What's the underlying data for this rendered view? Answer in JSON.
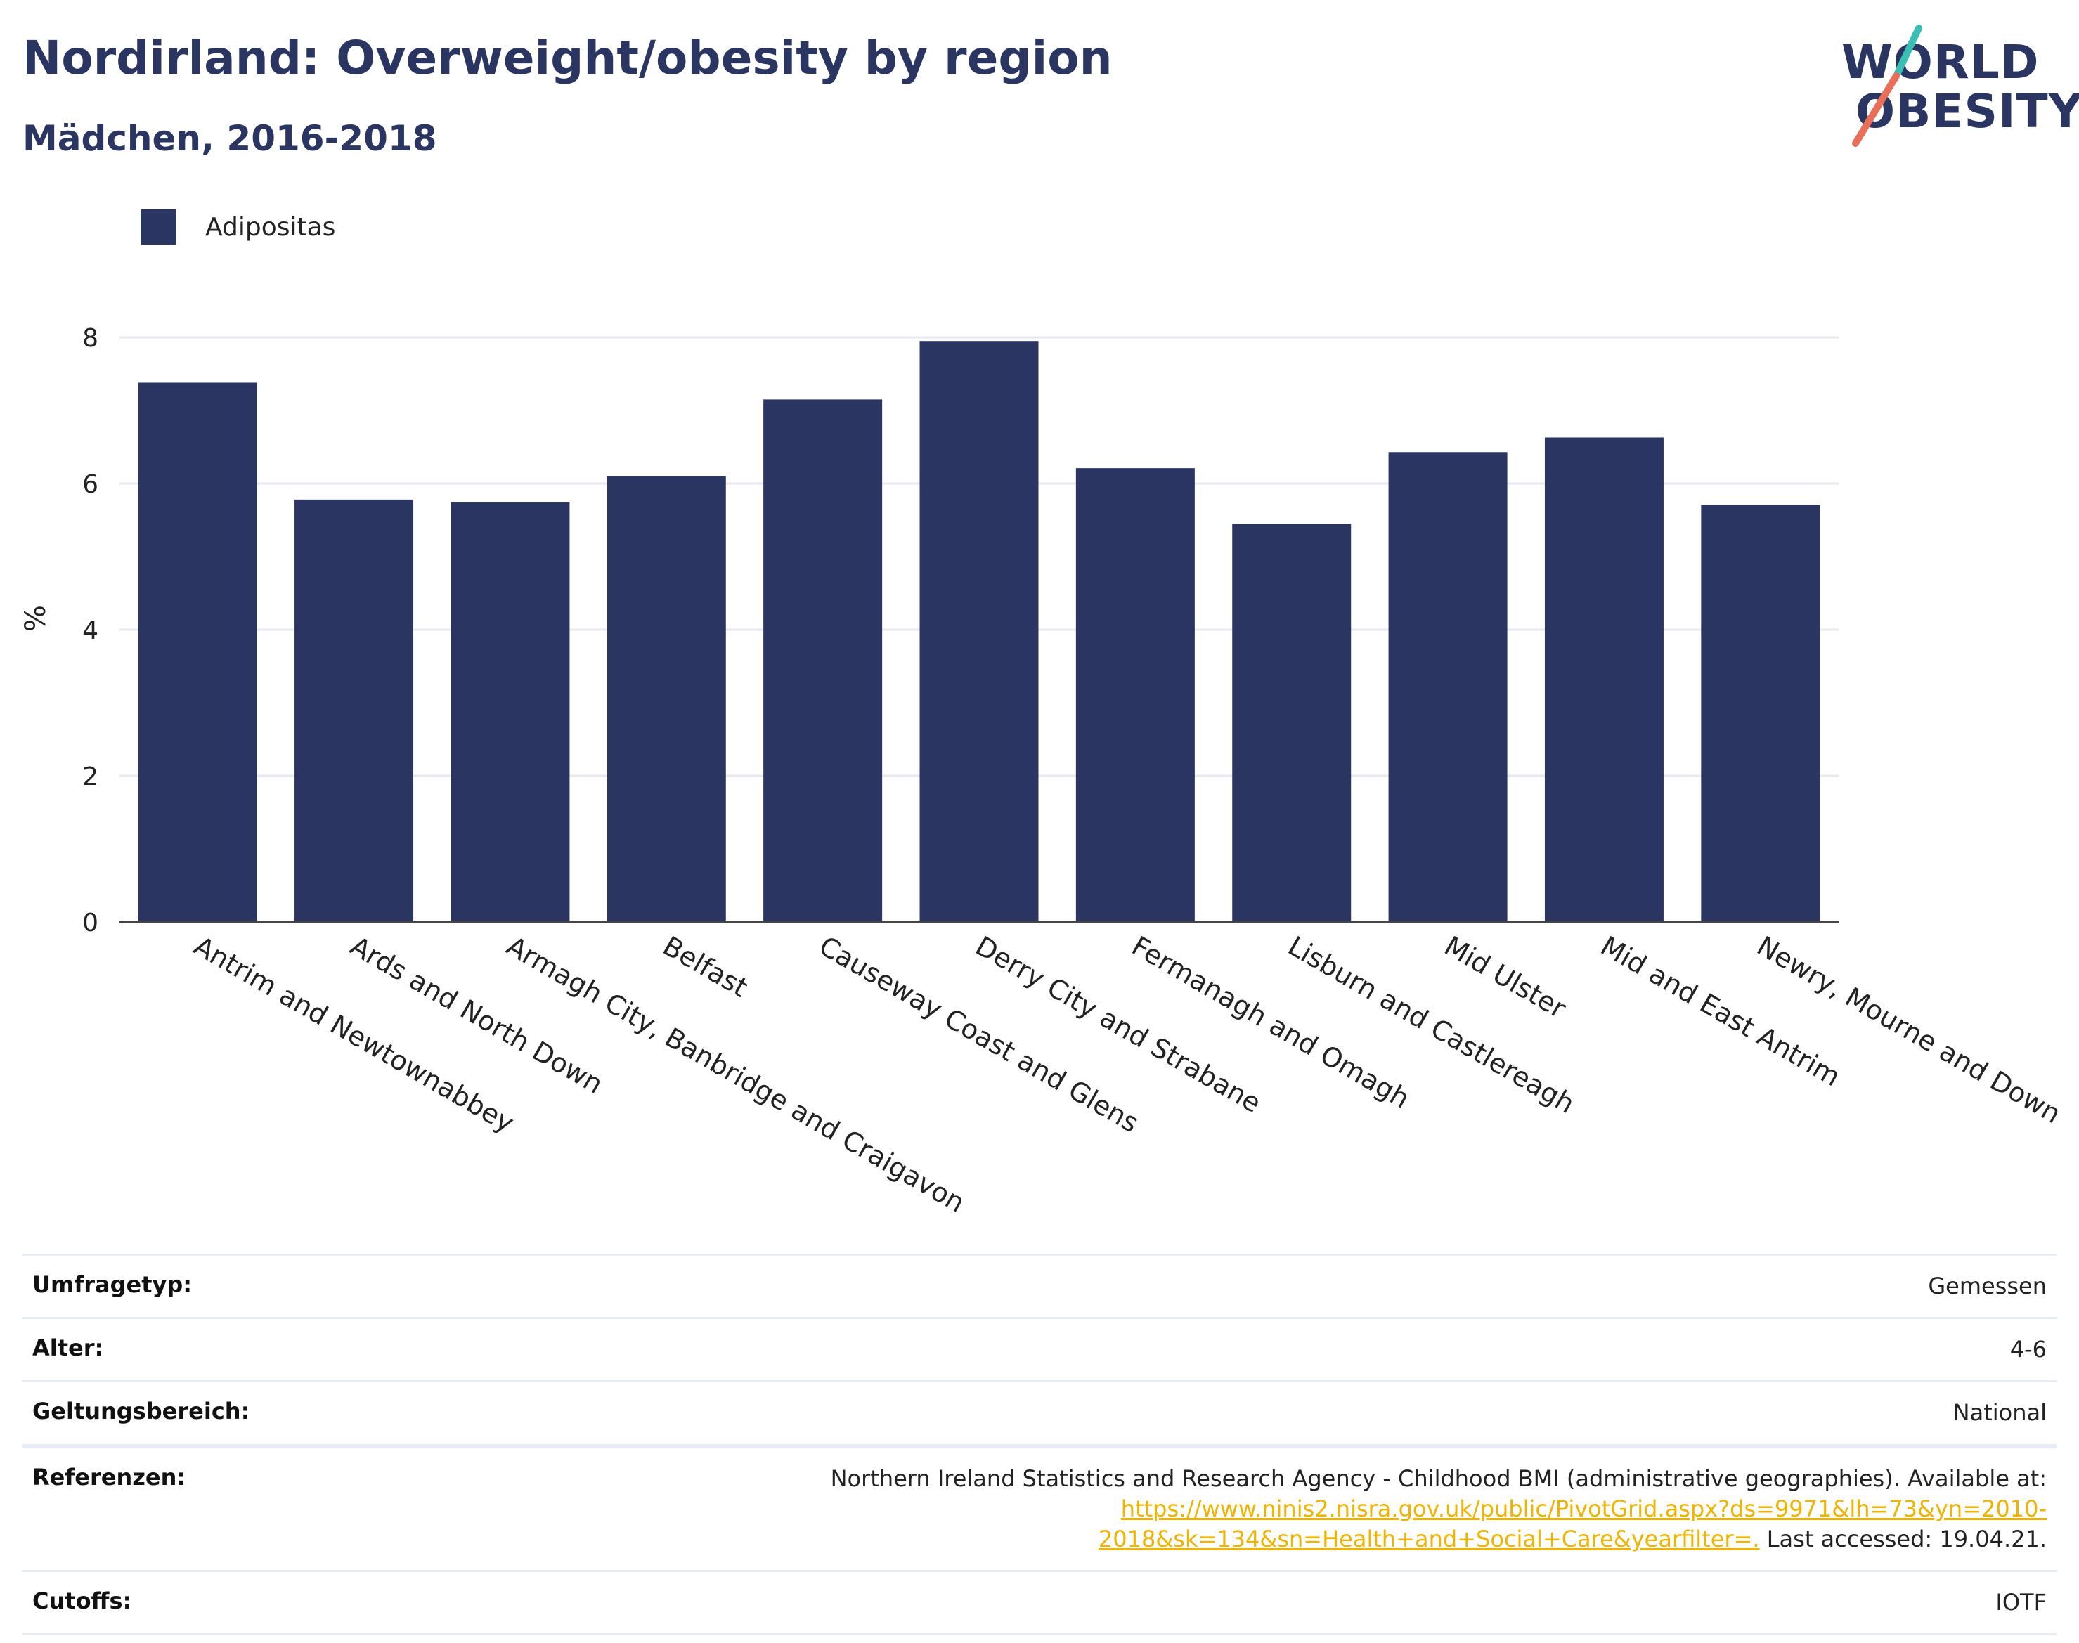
{
  "header": {
    "title": "Nordirland: Overweight/obesity by region",
    "subtitle": "Mädchen, 2016-2018"
  },
  "logo": {
    "line1": "WORLD",
    "line2": "OBESITY"
  },
  "colors": {
    "bar": "#2a3561",
    "accent_teal": "#3bbfb5",
    "accent_red": "#e8705a",
    "link": "#f0b400"
  },
  "chart_data": {
    "type": "bar",
    "categories": [
      "Antrim and Newtownabbey",
      "Ards and North Down",
      "Armagh City, Banbridge and Craigavon",
      "Belfast",
      "Causeway Coast and Glens",
      "Derry City and Strabane",
      "Fermanagh and Omagh",
      "Lisburn and Castlereagh",
      "Mid Ulster",
      "Mid and East Antrim",
      "Newry, Mourne and Down"
    ],
    "series": [
      {
        "name": "Adipositas",
        "values": [
          7.38,
          5.78,
          5.74,
          6.1,
          7.15,
          7.95,
          6.21,
          5.45,
          6.43,
          6.63,
          5.71
        ]
      }
    ],
    "ylabel": "%",
    "ylim": [
      0,
      8
    ],
    "yticks": [
      0,
      2,
      4,
      6,
      8
    ],
    "grid": true,
    "legend_position": "top-left"
  },
  "info": {
    "rows": [
      {
        "label": "Umfragetyp:",
        "value": "Gemessen"
      },
      {
        "label": "Alter:",
        "value": "4-6"
      },
      {
        "label": "Geltungsbereich:",
        "value": "National"
      }
    ],
    "reference": {
      "label": "Referenzen:",
      "text_before": "Northern Ireland Statistics and Research Agency - Childhood BMI (administrative geographies). Available at:",
      "link": "https://www.ninis2.nisra.gov.uk/public/PivotGrid.aspx?ds=9971&lh=73&yn=2010-2018&sk=134&sn=Health+and+Social+Care&yearfilter=.",
      "text_after": "Last accessed: 19.04.21."
    },
    "cutoffs": {
      "label": "Cutoffs:",
      "value": "IOTF"
    }
  }
}
